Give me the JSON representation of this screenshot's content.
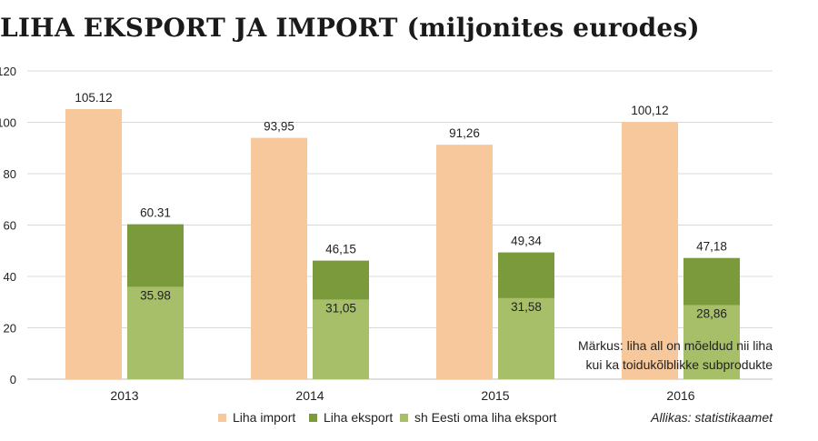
{
  "chart_data": {
    "type": "bar",
    "title": "LIHA EKSPORT JA IMPORT (miljonites eurodes)",
    "categories": [
      "2013",
      "2014",
      "2015",
      "2016"
    ],
    "ylim": [
      0,
      120
    ],
    "yticks": [
      "0",
      "20",
      "40",
      "60",
      "80",
      "100",
      "120"
    ],
    "grid": true,
    "series": [
      {
        "name": "Liha import",
        "values": [
          105.12,
          93.95,
          91.26,
          100.12
        ],
        "labels": [
          "105.12",
          "93,95",
          "91,26",
          "100,12"
        ],
        "color": "#f7c89c"
      },
      {
        "name": "Liha eksport",
        "values": [
          60.31,
          46.15,
          49.34,
          47.18
        ],
        "labels": [
          "60.31",
          "46,15",
          "49,34",
          "47,18"
        ],
        "color": "#7a9a3c"
      },
      {
        "name": "sh Eesti oma liha eksport",
        "values": [
          35.98,
          31.05,
          31.58,
          28.86
        ],
        "labels": [
          "35.98",
          "31,05",
          "31,58",
          "28,86"
        ],
        "color": "#a8bf6a"
      }
    ],
    "legend_position": "bottom",
    "note": [
      "Märkus: liha all on mõeldud nii liha",
      "kui ka toidukõlblikke subprodukte"
    ],
    "source": "Allikas: statistikaamet"
  }
}
